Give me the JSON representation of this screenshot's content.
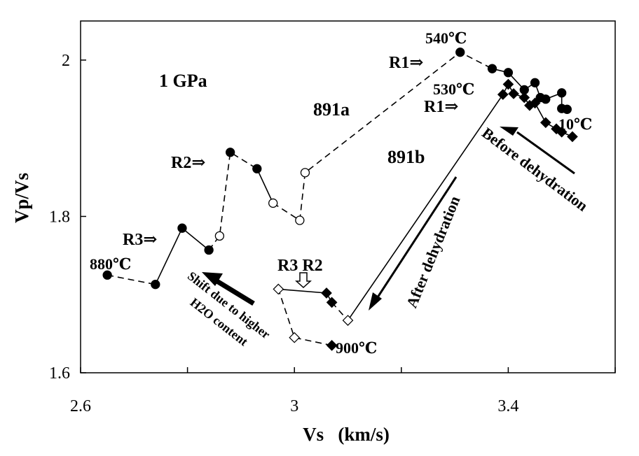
{
  "chart_data": {
    "type": "scatter",
    "xlabel": "Vs   (km/s)",
    "ylabel": "Vp/Vs",
    "xlim": [
      2.6,
      3.6
    ],
    "ylim": [
      1.6,
      2.05
    ],
    "x_ticks": [
      {
        "value": 2.6,
        "label": "2.6"
      },
      {
        "value": 3.0,
        "label": "3"
      },
      {
        "value": 3.4,
        "label": "3.4"
      }
    ],
    "y_ticks": [
      {
        "value": 1.6,
        "label": "1.6"
      },
      {
        "value": 1.8,
        "label": "1.8"
      },
      {
        "value": 2.0,
        "label": "2"
      }
    ],
    "x_minor_ticks": [
      2.8,
      3.2,
      3.6
    ],
    "grid": false,
    "series": [
      {
        "name": "891a",
        "marker": "circle",
        "segments": [
          {
            "style": "dashed",
            "from": 0,
            "to": 1
          },
          {
            "style": "solid",
            "from": 1,
            "to": 3
          },
          {
            "style": "dashed",
            "from": 3,
            "to": 6
          },
          {
            "style": "solid",
            "from": 6,
            "to": 7
          },
          {
            "style": "dashed",
            "from": 7,
            "to": 11
          },
          {
            "style": "solid",
            "from": 11,
            "to": 19
          }
        ],
        "points": [
          {
            "x": 2.65,
            "y": 1.725,
            "filled": true
          },
          {
            "x": 2.74,
            "y": 1.713,
            "filled": true
          },
          {
            "x": 2.79,
            "y": 1.785,
            "filled": true
          },
          {
            "x": 2.84,
            "y": 1.757,
            "filled": true
          },
          {
            "x": 2.86,
            "y": 1.775,
            "filled": false
          },
          {
            "x": 2.88,
            "y": 1.882,
            "filled": true
          },
          {
            "x": 2.93,
            "y": 1.861,
            "filled": true
          },
          {
            "x": 2.96,
            "y": 1.817,
            "filled": false
          },
          {
            "x": 3.01,
            "y": 1.795,
            "filled": false
          },
          {
            "x": 3.02,
            "y": 1.856,
            "filled": false
          },
          {
            "x": 3.31,
            "y": 2.01,
            "filled": true
          },
          {
            "x": 3.37,
            "y": 1.989,
            "filled": true
          },
          {
            "x": 3.4,
            "y": 1.984,
            "filled": true
          },
          {
            "x": 3.43,
            "y": 1.962,
            "filled": true
          },
          {
            "x": 3.45,
            "y": 1.971,
            "filled": true
          },
          {
            "x": 3.46,
            "y": 1.952,
            "filled": true
          },
          {
            "x": 3.47,
            "y": 1.95,
            "filled": true
          },
          {
            "x": 3.5,
            "y": 1.958,
            "filled": true
          },
          {
            "x": 3.5,
            "y": 1.938,
            "filled": true
          },
          {
            "x": 3.51,
            "y": 1.937,
            "filled": true
          }
        ]
      },
      {
        "name": "891b",
        "marker": "diamond",
        "segments": [
          {
            "style": "dashed",
            "from": 0,
            "to": 2
          },
          {
            "style": "solid",
            "from": 2,
            "to": 4
          },
          {
            "style": "dashed",
            "from": 4,
            "to": 5
          },
          {
            "style": "solid",
            "from": 5,
            "to": 15
          }
        ],
        "points": [
          {
            "x": 3.07,
            "y": 1.635,
            "filled": true
          },
          {
            "x": 3.0,
            "y": 1.645,
            "filled": false
          },
          {
            "x": 2.97,
            "y": 1.707,
            "filled": false
          },
          {
            "x": 3.06,
            "y": 1.702,
            "filled": true
          },
          {
            "x": 3.07,
            "y": 1.69,
            "filled": true
          },
          {
            "x": 3.1,
            "y": 1.667,
            "filled": false
          },
          {
            "x": 3.39,
            "y": 1.956,
            "filled": true
          },
          {
            "x": 3.4,
            "y": 1.969,
            "filled": true
          },
          {
            "x": 3.41,
            "y": 1.957,
            "filled": true
          },
          {
            "x": 3.43,
            "y": 1.952,
            "filled": true
          },
          {
            "x": 3.44,
            "y": 1.942,
            "filled": true
          },
          {
            "x": 3.45,
            "y": 1.945,
            "filled": true
          },
          {
            "x": 3.47,
            "y": 1.92,
            "filled": true
          },
          {
            "x": 3.49,
            "y": 1.912,
            "filled": true
          },
          {
            "x": 3.5,
            "y": 1.908,
            "filled": true
          },
          {
            "x": 3.52,
            "y": 1.902,
            "filled": true
          }
        ]
      }
    ],
    "annotations": {
      "pressure": "1 GPa",
      "label_891a": "891a",
      "label_891b": "891b",
      "temp_540": "540℃",
      "temp_530": "530℃",
      "temp_10": "10℃",
      "temp_880": "880℃",
      "temp_900": "900℃",
      "r1_a": "R1⇒",
      "r1_b": "R1⇒",
      "r2": "R2⇒",
      "r3": "R3⇒",
      "r3r2": "R3 R2",
      "before": "Before dehydration",
      "after": "After dehydration",
      "shift_line1": "Shift due to higher",
      "shift_line2": "H2O content"
    }
  }
}
